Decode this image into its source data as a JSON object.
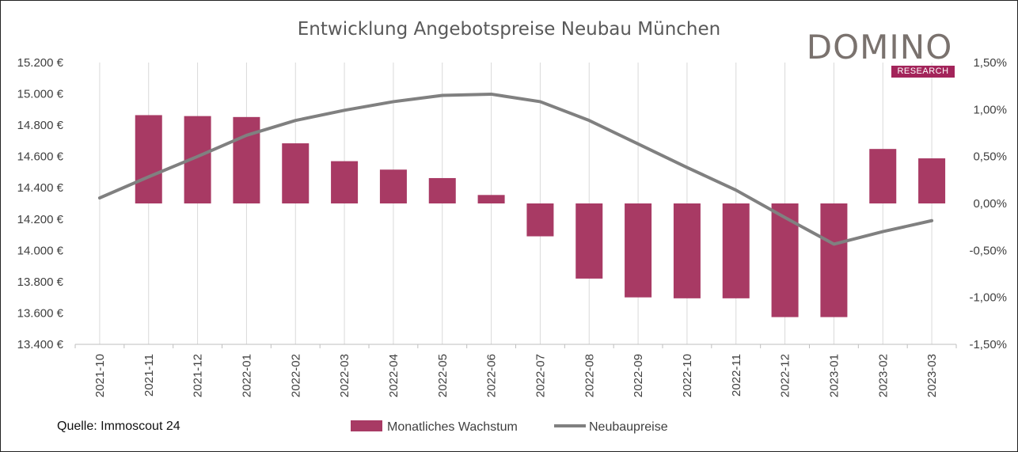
{
  "chart_data": {
    "type": "bar+line",
    "title": "Entwicklung Angebotspreise Neubau München",
    "categories": [
      "2021-10",
      "2021-11",
      "2021-12",
      "2022-01",
      "2022-02",
      "2022-03",
      "2022-04",
      "2022-05",
      "2022-06",
      "2022-07",
      "2022-08",
      "2022-09",
      "2022-10",
      "2022-11",
      "2022-12",
      "2023-01",
      "2023-02",
      "2023-03"
    ],
    "series": [
      {
        "name": "Monatliches Wachstum",
        "type": "bar",
        "axis": "right",
        "color": "#a83a64",
        "values": [
          null,
          0.94,
          0.93,
          0.92,
          0.64,
          0.45,
          0.36,
          0.27,
          0.09,
          -0.35,
          -0.8,
          -1.0,
          -1.01,
          -1.01,
          -1.21,
          -1.21,
          0.58,
          0.48
        ]
      },
      {
        "name": "Neubaupreise",
        "type": "line",
        "axis": "left",
        "color": "#808080",
        "values": [
          14335,
          14470,
          14600,
          14735,
          14830,
          14895,
          14950,
          14990,
          14998,
          14950,
          14830,
          14680,
          14530,
          14385,
          14210,
          14040,
          14120,
          14190
        ]
      }
    ],
    "y_left": {
      "min": 13400,
      "max": 15200,
      "ticks": [
        "13.400 €",
        "13.600 €",
        "13.800 €",
        "14.000 €",
        "14.200 €",
        "14.400 €",
        "14.600 €",
        "14.800 €",
        "15.000 €",
        "15.200 €"
      ]
    },
    "y_right": {
      "min": -1.5,
      "max": 1.5,
      "ticks": [
        "-1,50%",
        "-1,00%",
        "-0,50%",
        "0,00%",
        "0,50%",
        "1,00%",
        "1,50%"
      ]
    },
    "grid": "vertical",
    "legend": "bottom-center",
    "legend_labels": {
      "bar": "Monatliches Wachstum",
      "line": "Neubaupreise"
    }
  },
  "source": "Quelle: Immoscout 24",
  "logo": {
    "word": "DOMINO",
    "sub": "RESEARCH",
    "accent": "#a3245a"
  }
}
